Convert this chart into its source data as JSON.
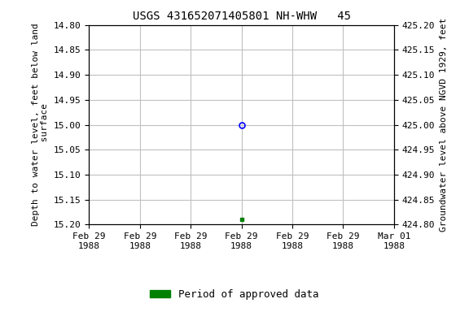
{
  "title": "USGS 431652071405801 NH-WHW   45",
  "ylabel_left": "Depth to water level, feet below land\n surface",
  "ylabel_right": "Groundwater level above NGVD 1929, feet",
  "ylim_left": [
    15.2,
    14.8
  ],
  "ylim_right": [
    424.8,
    425.2
  ],
  "yticks_left": [
    14.8,
    14.85,
    14.9,
    14.95,
    15.0,
    15.05,
    15.1,
    15.15,
    15.2
  ],
  "yticks_right": [
    425.2,
    425.15,
    425.1,
    425.05,
    425.0,
    424.95,
    424.9,
    424.85,
    424.8
  ],
  "tick_labels_x": [
    "Feb 29\n1988",
    "Feb 29\n1988",
    "Feb 29\n1988",
    "Feb 29\n1988",
    "Feb 29\n1988",
    "Feb 29\n1988",
    "Mar 01\n1988"
  ],
  "data_point_open_x": 3,
  "data_point_open_depth": 15.0,
  "data_point_filled_x": 3,
  "data_point_filled_depth": 15.19,
  "legend_label": "Period of approved data",
  "legend_color": "#008000",
  "background_color": "#ffffff",
  "grid_color": "#c0c0c0",
  "open_marker_color": "#0000ff",
  "filled_marker_color": "#008000",
  "title_fontsize": 10,
  "axis_label_fontsize": 8,
  "tick_fontsize": 8,
  "legend_fontsize": 9,
  "x_num_ticks": 7,
  "x_range": [
    0,
    6
  ]
}
